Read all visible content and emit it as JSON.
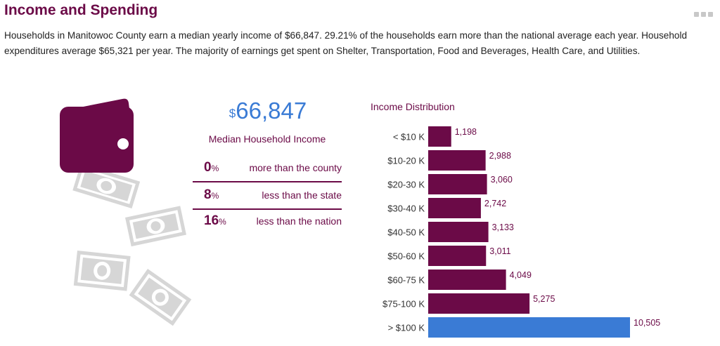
{
  "header": {
    "title": "Income and Spending"
  },
  "description": "Households in Manitowoc County earn a median yearly income of $66,847. 29.21% of the households earn more than the national average each year. Household expenditures average $65,321 per year. The majority of earnings get spent on Shelter, Transportation, Food and Beverages, Health Care, and Utilities.",
  "income": {
    "currency": "$",
    "value": "66,847",
    "label": "Median Household Income",
    "comparisons": [
      {
        "value": "0",
        "unit": "%",
        "text": "more than the county"
      },
      {
        "value": "8",
        "unit": "%",
        "text": "less than the state"
      },
      {
        "value": "16",
        "unit": "%",
        "text": "less than the nation"
      }
    ]
  },
  "colors": {
    "accent": "#6b0a47",
    "highlight": "#3a7bd5",
    "money": "#d6d6d6"
  },
  "icons": {
    "wallet": "wallet-icon",
    "bills": "banknote-icon",
    "menu": "more-menu-icon"
  },
  "chart_data": {
    "type": "bar",
    "orientation": "horizontal",
    "title": "Income Distribution",
    "categories": [
      "< $10 K",
      "$10-20 K",
      "$20-30 K",
      "$30-40 K",
      "$40-50 K",
      "$50-60 K",
      "$60-75 K",
      "$75-100 K",
      "> $100 K"
    ],
    "values": [
      1198,
      2988,
      3060,
      2742,
      3133,
      3011,
      4049,
      5275,
      10505
    ],
    "value_labels": [
      "1,198",
      "2,988",
      "3,060",
      "2,742",
      "3,133",
      "3,011",
      "4,049",
      "5,275",
      "10,505"
    ],
    "bar_colors": [
      "#6b0a47",
      "#6b0a47",
      "#6b0a47",
      "#6b0a47",
      "#6b0a47",
      "#6b0a47",
      "#6b0a47",
      "#6b0a47",
      "#3a7bd5"
    ],
    "xlim": [
      0,
      10505
    ],
    "grid": false,
    "legend": "none"
  }
}
